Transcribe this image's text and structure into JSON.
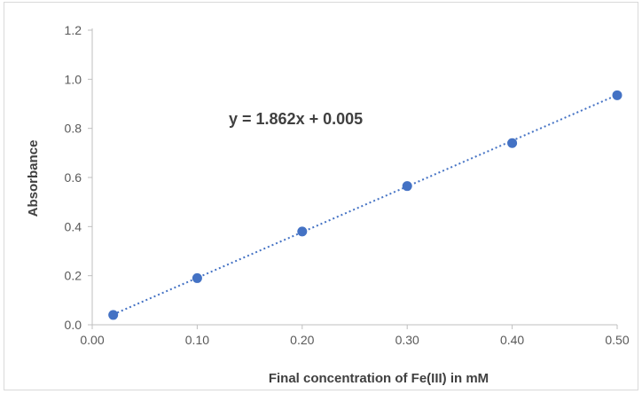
{
  "chart_data": {
    "type": "scatter",
    "title": "",
    "xlabel": "Final concentration of Fe(III) in mM",
    "ylabel": "Absorbance",
    "xlim": [
      0.0,
      0.5
    ],
    "ylim": [
      0.0,
      1.2
    ],
    "x_ticks": [
      0.0,
      0.1,
      0.2,
      0.3,
      0.4,
      0.5
    ],
    "x_tick_labels": [
      "0.00",
      "0.10",
      "0.20",
      "0.30",
      "0.40",
      "0.50"
    ],
    "y_ticks": [
      0.0,
      0.2,
      0.4,
      0.6,
      0.8,
      1.0,
      1.2
    ],
    "y_tick_labels": [
      "0.0",
      "0.2",
      "0.4",
      "0.6",
      "0.8",
      "1.0",
      "1.2"
    ],
    "grid": false,
    "legend": "none",
    "series": [
      {
        "x": [
          0.02,
          0.1,
          0.2,
          0.3,
          0.4,
          0.5
        ],
        "y": [
          0.04,
          0.19,
          0.38,
          0.565,
          0.74,
          0.935
        ],
        "color": "#4472c4",
        "marker": "circle"
      }
    ],
    "trendline": {
      "type": "linear",
      "slope": 1.862,
      "intercept": 0.005,
      "x_range": [
        0.02,
        0.5
      ],
      "style": "dotted",
      "color": "#4472c4"
    },
    "annotations": [
      {
        "text": "y = 1.862x + 0.005"
      }
    ]
  }
}
